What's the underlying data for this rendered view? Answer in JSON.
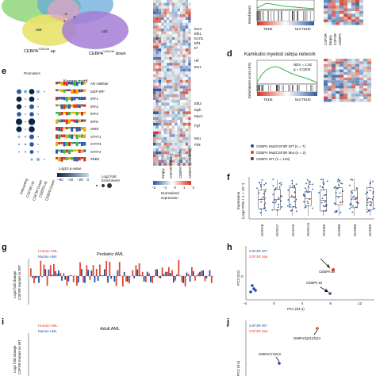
{
  "panel_labels": {
    "d": "d",
    "e": "e",
    "f": "f",
    "g": "g",
    "h": "h",
    "i": "i",
    "j": "j"
  },
  "venn": {
    "counts": [
      "368",
      "162",
      "0",
      "5",
      "8"
    ],
    "labels": [
      "CEBPA^{V314VW} up",
      "CEBPA^{V314VW} down"
    ],
    "label_up": "CEBPA",
    "label_up_sup": "V314VW",
    "label_up_suffix": "up",
    "label_down": "CEBPA",
    "label_down_sup": "V314VW",
    "label_down_suffix": "down"
  },
  "heatmap": {
    "genes": [
      "Etv4",
      "Elk1",
      "Ezzf1",
      "Elf1",
      "Irf",
      "Hlf",
      "Etv1",
      "Elk3",
      "Myb",
      "Mycn",
      "Pgf",
      "Mx1",
      "Pbk"
    ],
    "x_labels": [
      "Empty",
      "CSF3R^{T618I}",
      "CEBPA^{V314VW}",
      "CEBPA^{V314VW}"
    ],
    "colorbar_ticks": [
      "−2",
      "−1",
      "0",
      "1",
      "2"
    ],
    "colorbar_title": "Normalized",
    "colorbar_title2": "expression"
  },
  "top_gsea": {
    "ylabel": "Enrichment",
    "x_left": "T618I",
    "x_right": "Not T618I"
  },
  "gsea_d": {
    "title": "Kamikubo myeloid cebpa network",
    "nes": "NES = 1.92",
    "q": "q = 0.0203",
    "ylabel": "Enrichment score (ES)",
    "x_left": "T618I",
    "x_right": "Not T618I",
    "side_labels": [
      "CSF3R",
      "Empty",
      "CSF3R",
      "CEBPA"
    ]
  },
  "motif_e": {
    "header_promoters": "Promoters",
    "header_known": "Known motif",
    "motifs": [
      "AR Halfsite",
      "bZIP:IRF",
      "IRF1",
      "IRF2",
      "IRF3",
      "IRF8",
      "ISRE",
      "STAT1",
      "STAT3",
      "STAT4",
      "ZEB2"
    ],
    "motif_prefix_2": "bZIP:IRF",
    "x_labels": [
      "Interacting",
      "CSF3R Up",
      "CSF3R Down",
      "CEBPA Up",
      "CEBPA Down"
    ],
    "legend_title": "Log10 p-value",
    "legend_ticks": [
      "−60",
      "−40",
      "−20",
      "0"
    ],
    "legend_title2": "Log2 fold",
    "legend_title3": "Enrichment"
  },
  "legend_f": {
    "items": [
      {
        "label": "CEBPA Mut/CSF3R WT",
        "n": "(n = 7)",
        "color": "#1f4e9c"
      },
      {
        "label": "CEBPA Mut/CSF3R Mut",
        "n": "(n = 2)",
        "color": "#e2412c"
      },
      {
        "label": "CEBPA WT",
        "n": "(n = 143)",
        "color": "#444444"
      }
    ]
  },
  "boxplot_f": {
    "ylabel1": "Expression",
    "ylabel2": "(Log2 TPM + 1 × 10⁻¹)",
    "categories": [
      "HOXA6",
      "HOXA7",
      "HOXA9",
      "HOXA11",
      "HOXB5",
      "HOXB6",
      "HOXB8",
      "HOXB9"
    ]
  },
  "bar_g": {
    "title": "Pediatric AML",
    "legend": [
      "Human AML",
      "Murine AML"
    ],
    "ylabel1": "Log2 fold change",
    "ylabel2": "CSF3R mutant vs WT",
    "colors": {
      "human": "#e2412c",
      "murine": "#1f4e9c"
    }
  },
  "bar_i": {
    "title": "Adult AML",
    "legend": [
      "Human AML",
      "Murine AML"
    ],
    "ylabel1": "Log2 fold change",
    "ylabel2": "CSF3R mutant vs WT"
  },
  "pca_h": {
    "legend": [
      "CSF3R WT",
      "CSF3R Mut"
    ],
    "annotation_top": "CEBPA BI",
    "annotation_bottom": "CEBPA BI",
    "xlabel": "PC1 (84.4)",
    "ylabel": "PC2 (8.5)",
    "x_ticks": [
      "−4",
      "0",
      "4",
      "8",
      "12"
    ],
    "y_ticks": [
      "0"
    ]
  },
  "pca_j": {
    "legend": [
      "CSF3R WT",
      "CSF3R Mut"
    ],
    "annotation_1": "D69Fs/Q312fs24",
    "annotation_2": "G96Fs/Y181X",
    "ylabel": "PC2 (8.5)"
  }
}
